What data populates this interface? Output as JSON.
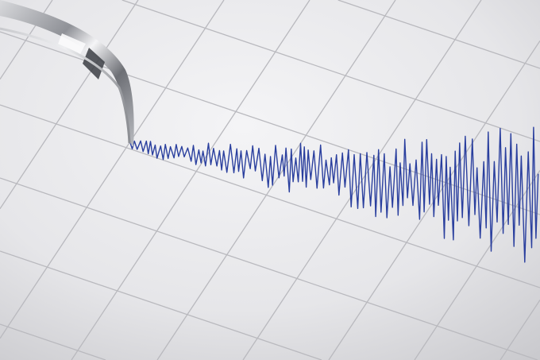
{
  "colors": {
    "paper": "#ececee",
    "grid": "#b9b9be",
    "trace": "#2a3f9e",
    "needle": "#9a9ca2"
  }
}
